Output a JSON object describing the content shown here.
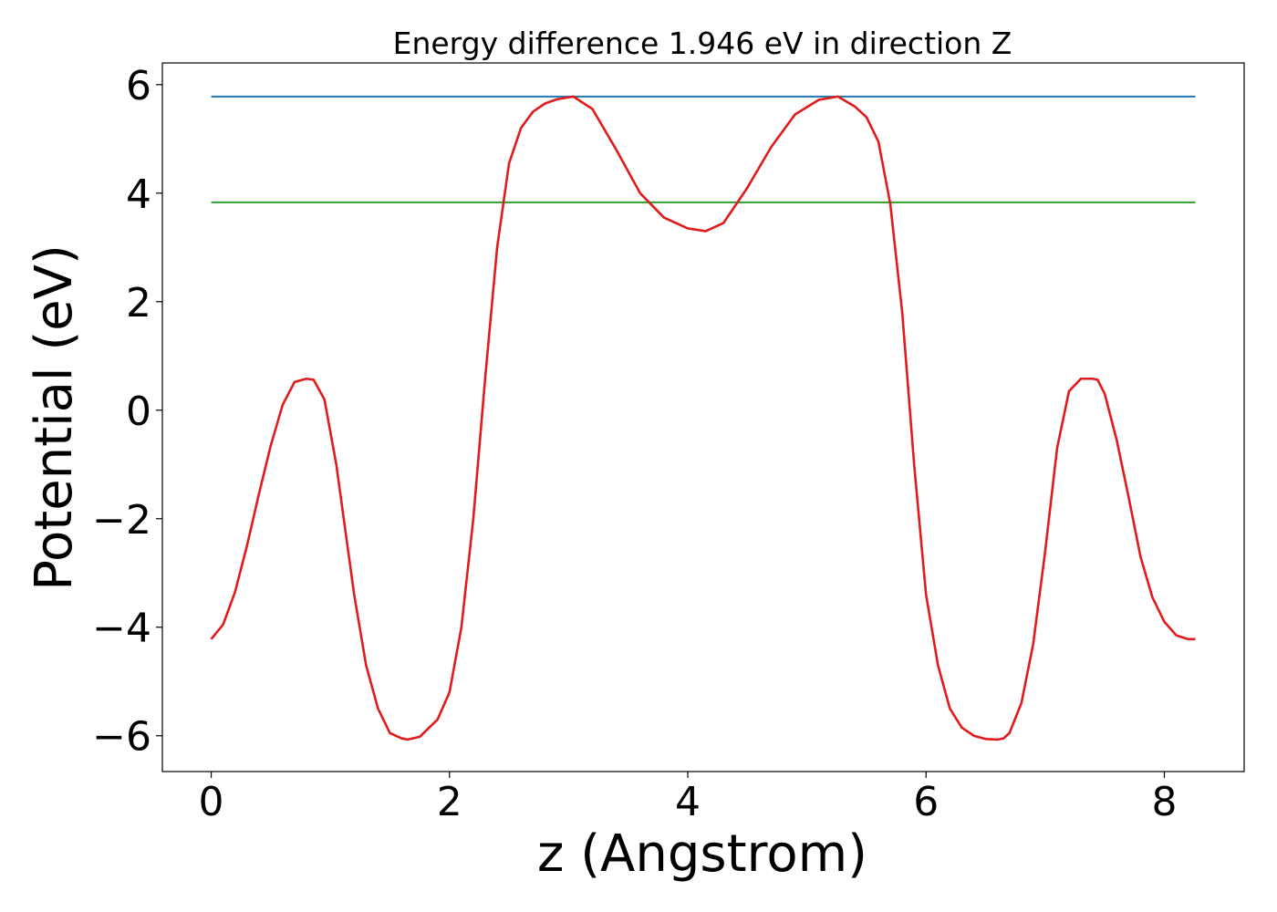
{
  "chart_data": {
    "type": "line",
    "title": "Energy difference 1.946 eV in direction Z",
    "xlabel": "z (Angstrom)",
    "ylabel": "Potential (eV)",
    "xlim": [
      -0.41,
      8.67
    ],
    "ylim": [
      -6.66,
      6.4
    ],
    "xticks": [
      0,
      2,
      4,
      6,
      8
    ],
    "yticks": [
      -6,
      -4,
      -2,
      0,
      2,
      4,
      6
    ],
    "xtick_labels": [
      "0",
      "2",
      "4",
      "6",
      "8"
    ],
    "ytick_labels": [
      "−6",
      "−4",
      "−2",
      "0",
      "2",
      "4",
      "6"
    ],
    "grid": false,
    "series": [
      {
        "color": "#1f77b4",
        "x": [
          0,
          8.26
        ],
        "y": [
          5.78,
          5.78
        ]
      },
      {
        "color": "#2ca02c",
        "x": [
          0,
          8.26
        ],
        "y": [
          3.83,
          3.83
        ]
      },
      {
        "color": "#e31a1c",
        "x": [
          0,
          0.1,
          0.2,
          0.3,
          0.4,
          0.5,
          0.6,
          0.7,
          0.8,
          0.86,
          0.95,
          1.05,
          1.2,
          1.3,
          1.4,
          1.5,
          1.6,
          1.65,
          1.75,
          1.9,
          2.0,
          2.1,
          2.2,
          2.3,
          2.4,
          2.5,
          2.6,
          2.7,
          2.8,
          2.9,
          3.04,
          3.2,
          3.4,
          3.6,
          3.8,
          4.0,
          4.15,
          4.3,
          4.5,
          4.7,
          4.9,
          5.1,
          5.26,
          5.4,
          5.5,
          5.6,
          5.7,
          5.8,
          5.9,
          6.0,
          6.1,
          6.2,
          6.3,
          6.4,
          6.5,
          6.6,
          6.65,
          6.7,
          6.8,
          6.9,
          7.0,
          7.1,
          7.2,
          7.3,
          7.4,
          7.44,
          7.5,
          7.6,
          7.7,
          7.8,
          7.9,
          8.0,
          8.1,
          8.2,
          8.26
        ],
        "y": [
          -4.22,
          -3.95,
          -3.35,
          -2.5,
          -1.55,
          -0.65,
          0.1,
          0.52,
          0.58,
          0.56,
          0.2,
          -1.0,
          -3.4,
          -4.7,
          -5.5,
          -5.95,
          -6.05,
          -6.07,
          -6.02,
          -5.7,
          -5.2,
          -4.0,
          -2.0,
          0.6,
          3.0,
          4.55,
          5.2,
          5.5,
          5.65,
          5.73,
          5.78,
          5.55,
          4.8,
          4.0,
          3.55,
          3.35,
          3.3,
          3.45,
          4.1,
          4.85,
          5.45,
          5.72,
          5.78,
          5.6,
          5.4,
          4.95,
          3.8,
          1.8,
          -1.0,
          -3.4,
          -4.7,
          -5.5,
          -5.85,
          -6.0,
          -6.06,
          -6.07,
          -6.05,
          -5.95,
          -5.4,
          -4.3,
          -2.6,
          -0.7,
          0.35,
          0.58,
          0.58,
          0.56,
          0.3,
          -0.55,
          -1.6,
          -2.7,
          -3.45,
          -3.9,
          -4.15,
          -4.22,
          -4.22
        ]
      }
    ]
  }
}
